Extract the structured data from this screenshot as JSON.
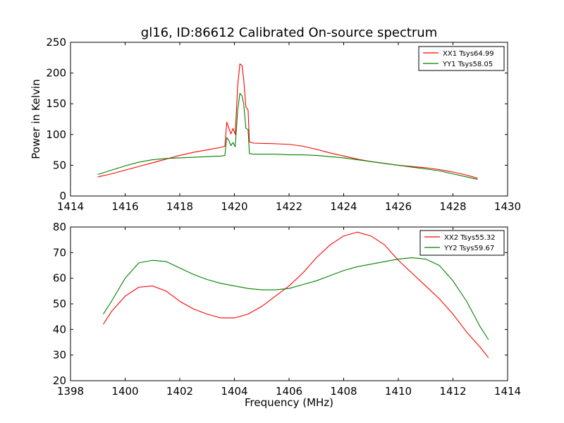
{
  "title": "gl16, ID:86612 Calibrated On-source spectrum",
  "chart_data": [
    {
      "type": "line",
      "xlabel": "",
      "ylabel": "Power in Kelvin",
      "xlim": [
        1414,
        1430
      ],
      "ylim": [
        0,
        250
      ],
      "xticks": [
        1414,
        1416,
        1418,
        1420,
        1422,
        1424,
        1426,
        1428,
        1430
      ],
      "yticks": [
        0,
        50,
        100,
        150,
        200,
        250
      ],
      "legend_position": "top-right",
      "series": [
        {
          "name": "XX1 Tsys64.99",
          "color": "#ff0000",
          "points": [
            [
              1415.0,
              31
            ],
            [
              1415.5,
              36
            ],
            [
              1416.0,
              42
            ],
            [
              1416.5,
              48
            ],
            [
              1417.0,
              54
            ],
            [
              1417.5,
              60
            ],
            [
              1418.0,
              66
            ],
            [
              1418.5,
              71
            ],
            [
              1419.0,
              75
            ],
            [
              1419.5,
              79
            ],
            [
              1419.65,
              81
            ],
            [
              1419.72,
              120
            ],
            [
              1419.8,
              110
            ],
            [
              1419.87,
              101
            ],
            [
              1419.95,
              110
            ],
            [
              1420.03,
              100
            ],
            [
              1420.12,
              180
            ],
            [
              1420.2,
              215
            ],
            [
              1420.28,
              212
            ],
            [
              1420.34,
              190
            ],
            [
              1420.42,
              145
            ],
            [
              1420.5,
              140
            ],
            [
              1420.55,
              88
            ],
            [
              1420.7,
              86
            ],
            [
              1421.5,
              85
            ],
            [
              1422.0,
              84
            ],
            [
              1422.5,
              81
            ],
            [
              1423.0,
              76
            ],
            [
              1423.5,
              70
            ],
            [
              1424.0,
              65
            ],
            [
              1424.5,
              60
            ],
            [
              1425.0,
              56
            ],
            [
              1425.5,
              53
            ],
            [
              1426.0,
              50
            ],
            [
              1426.5,
              48
            ],
            [
              1427.0,
              46
            ],
            [
              1427.5,
              43
            ],
            [
              1428.0,
              39
            ],
            [
              1428.5,
              34
            ],
            [
              1428.9,
              29
            ]
          ]
        },
        {
          "name": "YY1 Tsys58.05",
          "color": "#008000",
          "points": [
            [
              1415.0,
              35
            ],
            [
              1415.5,
              42
            ],
            [
              1416.0,
              49
            ],
            [
              1416.5,
              55
            ],
            [
              1417.0,
              59
            ],
            [
              1417.5,
              61
            ],
            [
              1418.0,
              62
            ],
            [
              1418.5,
              63
            ],
            [
              1419.0,
              64
            ],
            [
              1419.5,
              65
            ],
            [
              1419.65,
              66
            ],
            [
              1419.72,
              95
            ],
            [
              1419.8,
              90
            ],
            [
              1419.87,
              82
            ],
            [
              1419.95,
              87
            ],
            [
              1420.03,
              80
            ],
            [
              1420.12,
              140
            ],
            [
              1420.2,
              167
            ],
            [
              1420.28,
              163
            ],
            [
              1420.34,
              150
            ],
            [
              1420.42,
              110
            ],
            [
              1420.5,
              108
            ],
            [
              1420.55,
              69
            ],
            [
              1420.7,
              68
            ],
            [
              1421.5,
              68
            ],
            [
              1422.0,
              67
            ],
            [
              1422.5,
              67
            ],
            [
              1423.0,
              66
            ],
            [
              1423.5,
              64
            ],
            [
              1424.0,
              62
            ],
            [
              1424.5,
              59
            ],
            [
              1425.0,
              56
            ],
            [
              1425.5,
              53
            ],
            [
              1426.0,
              50
            ],
            [
              1426.5,
              47
            ],
            [
              1427.0,
              44
            ],
            [
              1427.5,
              41
            ],
            [
              1428.0,
              36
            ],
            [
              1428.5,
              31
            ],
            [
              1428.9,
              27
            ]
          ]
        }
      ]
    },
    {
      "type": "line",
      "xlabel": "Frequency (MHz)",
      "ylabel": "",
      "xlim": [
        1398,
        1414
      ],
      "ylim": [
        20,
        80
      ],
      "xticks": [
        1398,
        1400,
        1402,
        1404,
        1406,
        1408,
        1410,
        1412,
        1414
      ],
      "yticks": [
        20,
        30,
        40,
        50,
        60,
        70,
        80
      ],
      "legend_position": "top-right",
      "series": [
        {
          "name": "XX2 Tsys55.32",
          "color": "#ff0000",
          "points": [
            [
              1399.2,
              42
            ],
            [
              1399.5,
              47
            ],
            [
              1400.0,
              53
            ],
            [
              1400.5,
              56.5
            ],
            [
              1401.0,
              57
            ],
            [
              1401.5,
              55
            ],
            [
              1402.0,
              51
            ],
            [
              1402.5,
              48
            ],
            [
              1403.0,
              46
            ],
            [
              1403.5,
              44.5
            ],
            [
              1404.0,
              44.5
            ],
            [
              1404.5,
              46
            ],
            [
              1405.0,
              49
            ],
            [
              1405.5,
              53
            ],
            [
              1406.0,
              57
            ],
            [
              1406.5,
              62
            ],
            [
              1407.0,
              68
            ],
            [
              1407.5,
              73
            ],
            [
              1408.0,
              76.5
            ],
            [
              1408.5,
              78
            ],
            [
              1409.0,
              76.5
            ],
            [
              1409.5,
              73
            ],
            [
              1410.0,
              67
            ],
            [
              1410.5,
              62
            ],
            [
              1411.0,
              57
            ],
            [
              1411.5,
              52
            ],
            [
              1412.0,
              46
            ],
            [
              1412.5,
              39
            ],
            [
              1413.0,
              33
            ],
            [
              1413.3,
              29
            ]
          ]
        },
        {
          "name": "YY2 Tsys59.67",
          "color": "#008000",
          "points": [
            [
              1399.2,
              46
            ],
            [
              1399.5,
              51
            ],
            [
              1400.0,
              60
            ],
            [
              1400.5,
              66
            ],
            [
              1401.0,
              67
            ],
            [
              1401.5,
              66.5
            ],
            [
              1402.0,
              64
            ],
            [
              1402.5,
              61.5
            ],
            [
              1403.0,
              59.5
            ],
            [
              1403.5,
              58
            ],
            [
              1404.0,
              57
            ],
            [
              1404.5,
              56
            ],
            [
              1405.0,
              55.5
            ],
            [
              1405.5,
              55.5
            ],
            [
              1406.0,
              56
            ],
            [
              1406.5,
              57.5
            ],
            [
              1407.0,
              59
            ],
            [
              1407.5,
              61
            ],
            [
              1408.0,
              63
            ],
            [
              1408.5,
              64.5
            ],
            [
              1409.0,
              65.5
            ],
            [
              1409.5,
              66.5
            ],
            [
              1410.0,
              67.5
            ],
            [
              1410.5,
              68
            ],
            [
              1411.0,
              67.5
            ],
            [
              1411.5,
              65
            ],
            [
              1412.0,
              59
            ],
            [
              1412.5,
              51
            ],
            [
              1413.0,
              41
            ],
            [
              1413.3,
              36
            ]
          ]
        }
      ]
    }
  ]
}
